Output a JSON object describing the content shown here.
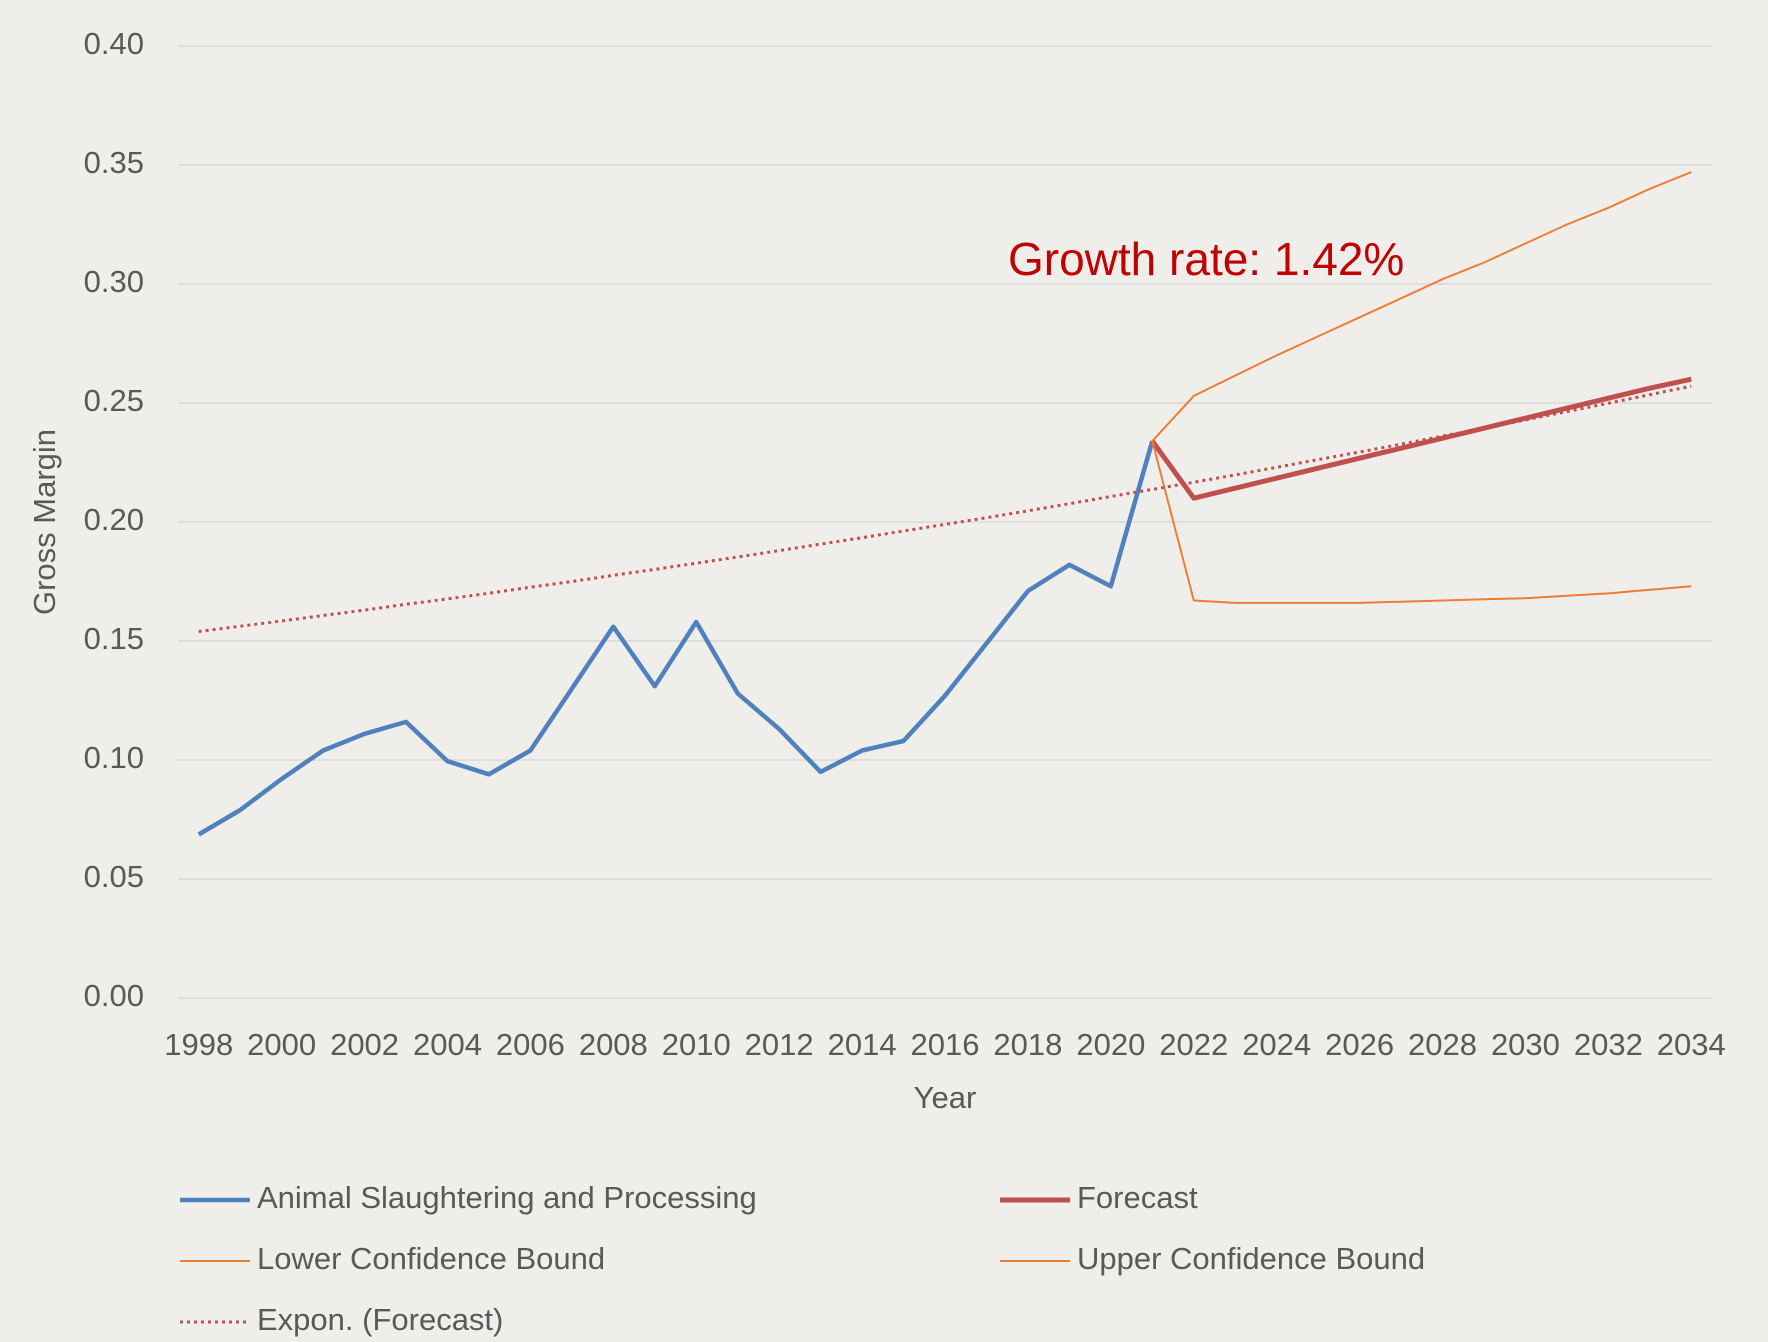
{
  "chart_data": {
    "type": "line",
    "y_label": "Gross Margin",
    "x_label": "Year",
    "annotation": "Growth rate: 1.42%",
    "x": [
      1998,
      1999,
      2000,
      2001,
      2002,
      2003,
      2004,
      2005,
      2006,
      2007,
      2008,
      2009,
      2010,
      2011,
      2012,
      2013,
      2014,
      2015,
      2016,
      2017,
      2018,
      2019,
      2020,
      2021,
      2022,
      2023,
      2024,
      2025,
      2026,
      2027,
      2028,
      2029,
      2030,
      2031,
      2032,
      2033,
      2034
    ],
    "xlim": [
      1997.5,
      2034.5
    ],
    "xticks": [
      1998,
      2000,
      2002,
      2004,
      2006,
      2008,
      2010,
      2012,
      2014,
      2016,
      2018,
      2020,
      2022,
      2024,
      2026,
      2028,
      2030,
      2032,
      2034
    ],
    "ylim": [
      0,
      0.4
    ],
    "yticks": [
      {
        "value": 0,
        "label": "0.00"
      },
      {
        "value": 0.05,
        "label": "0.05"
      },
      {
        "value": 0.1,
        "label": "0.10"
      },
      {
        "value": 0.15,
        "label": "0.15"
      },
      {
        "value": 0.2,
        "label": "0.20"
      },
      {
        "value": 0.25,
        "label": "0.25"
      },
      {
        "value": 0.3,
        "label": "0.30"
      },
      {
        "value": 0.35,
        "label": "0.35"
      },
      {
        "value": 0.4,
        "label": "0.40"
      }
    ],
    "grid": true,
    "series": [
      {
        "name": "Animal Slaughtering and Processing",
        "color": "#4f81bd",
        "line_style": "solid",
        "values": [
          0.0687,
          0.079,
          0.092,
          0.104,
          0.111,
          0.116,
          0.0995,
          0.094,
          0.104,
          0.13,
          0.156,
          0.131,
          0.158,
          0.128,
          0.113,
          0.095,
          0.104,
          0.108,
          0.127,
          0.149,
          0.171,
          0.182,
          0.173,
          0.234,
          null,
          null,
          null,
          null,
          null,
          null,
          null,
          null,
          null,
          null,
          null,
          null,
          null
        ]
      },
      {
        "name": "Forecast",
        "color": "#c0504d",
        "line_style": "solid",
        "values": [
          null,
          null,
          null,
          null,
          null,
          null,
          null,
          null,
          null,
          null,
          null,
          null,
          null,
          null,
          null,
          null,
          null,
          null,
          null,
          null,
          null,
          null,
          null,
          0.234,
          0.21,
          0.2142,
          0.2184,
          0.2226,
          0.2268,
          0.231,
          0.2352,
          0.2394,
          0.2436,
          0.2478,
          0.252,
          0.2562,
          0.26
        ]
      },
      {
        "name": "Lower Confidence Bound",
        "color": "#ed7d31",
        "line_style": "solid",
        "values": [
          null,
          null,
          null,
          null,
          null,
          null,
          null,
          null,
          null,
          null,
          null,
          null,
          null,
          null,
          null,
          null,
          null,
          null,
          null,
          null,
          null,
          null,
          null,
          0.234,
          0.167,
          0.166,
          0.166,
          0.166,
          0.166,
          0.1665,
          0.167,
          0.1675,
          0.168,
          0.169,
          0.17,
          0.1715,
          0.173
        ]
      },
      {
        "name": "Upper Confidence Bound",
        "color": "#ed7d31",
        "line_style": "solid",
        "values": [
          null,
          null,
          null,
          null,
          null,
          null,
          null,
          null,
          null,
          null,
          null,
          null,
          null,
          null,
          null,
          null,
          null,
          null,
          null,
          null,
          null,
          null,
          null,
          0.234,
          0.253,
          0.2615,
          0.27,
          0.278,
          0.286,
          0.294,
          0.302,
          0.309,
          0.317,
          0.325,
          0.332,
          0.34,
          0.347
        ]
      },
      {
        "name": "Expon. (Forecast)",
        "color": "#c0504d",
        "line_style": "dotted",
        "values": [
          0.154,
          0.1562,
          0.1584,
          0.1607,
          0.163,
          0.1654,
          0.1677,
          0.1701,
          0.1726,
          0.175,
          0.1776,
          0.1801,
          0.1827,
          0.1853,
          0.188,
          0.1907,
          0.1934,
          0.1962,
          0.199,
          0.2018,
          0.2047,
          0.2077,
          0.2107,
          0.2137,
          0.2167,
          0.2198,
          0.223,
          0.2262,
          0.2294,
          0.2327,
          0.2361,
          0.2394,
          0.2429,
          0.2464,
          0.2499,
          0.2535,
          0.2571
        ]
      }
    ]
  }
}
